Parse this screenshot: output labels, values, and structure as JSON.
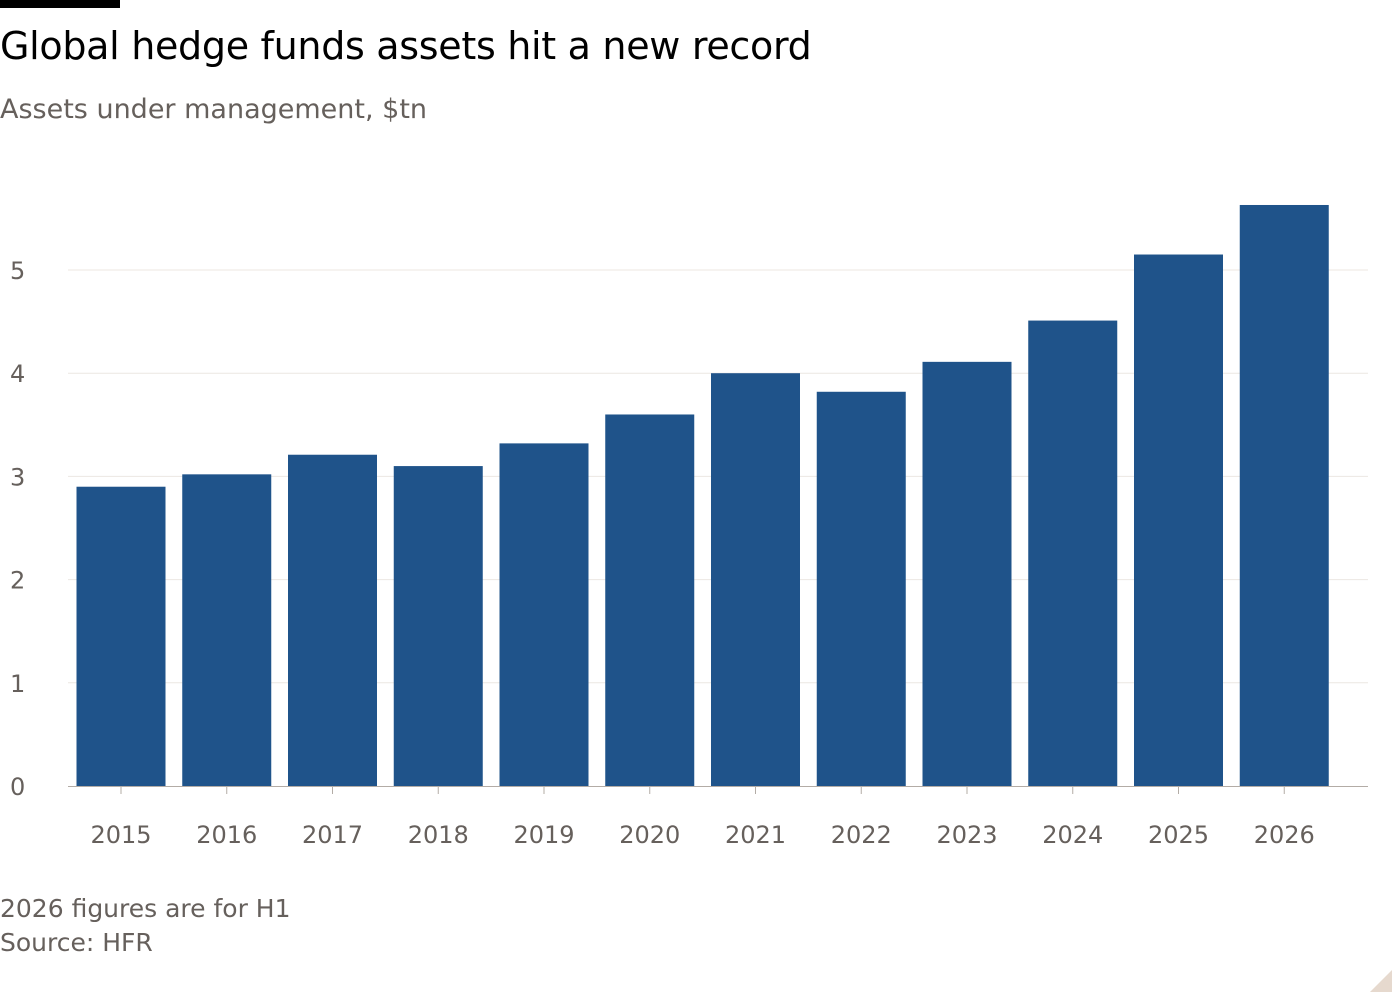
{
  "header": {
    "title": "Global hedge funds assets hit a new record",
    "subtitle": "Assets under management, $tn"
  },
  "footer": {
    "note": "2026 figures are for H1",
    "source": "Source: HFR"
  },
  "colors": {
    "bar": "#1f538a",
    "grid": "#ece7e2",
    "axis": "#b3aca6",
    "text_muted": "#66605c"
  },
  "chart_data": {
    "type": "bar",
    "title": "Global hedge funds assets hit a new record",
    "subtitle": "Assets under management, $tn",
    "xlabel": "",
    "ylabel": "",
    "categories": [
      "2015",
      "2016",
      "2017",
      "2018",
      "2019",
      "2020",
      "2021",
      "2022",
      "2023",
      "2024",
      "2025",
      "2026"
    ],
    "values": [
      2.9,
      3.02,
      3.21,
      3.1,
      3.32,
      3.6,
      4.0,
      3.82,
      4.11,
      4.51,
      5.15,
      5.63
    ],
    "yticks": [
      "0",
      "1",
      "2",
      "3",
      "4",
      "5"
    ],
    "ylim": [
      0,
      5.8
    ],
    "grid": true,
    "legend": "none"
  }
}
